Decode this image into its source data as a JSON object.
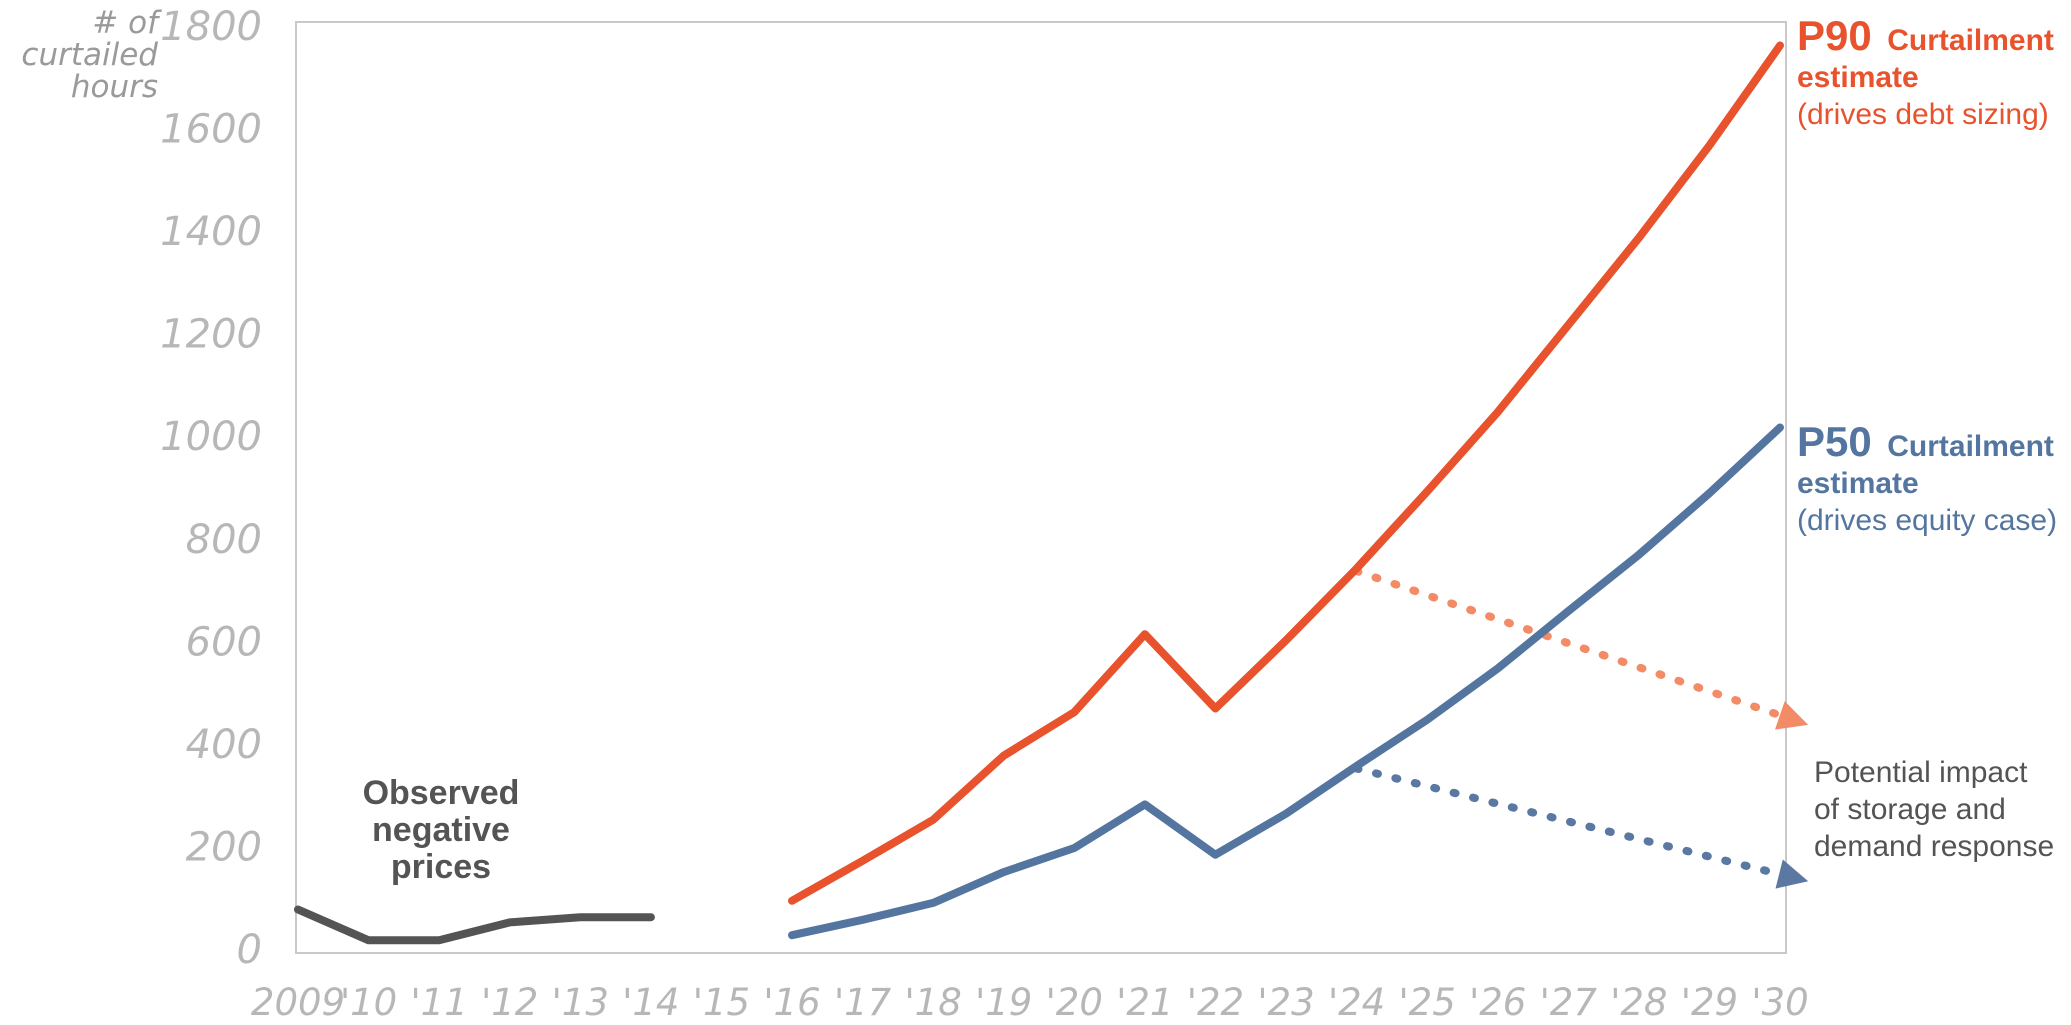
{
  "chart_data": {
    "type": "line",
    "ylabel": [
      "# of",
      "curtailed",
      "hours"
    ],
    "ylim": [
      0,
      1800
    ],
    "yticks": [
      0,
      200,
      400,
      600,
      800,
      1000,
      1200,
      1400,
      1600,
      1800
    ],
    "x_tick_labels": [
      "2009",
      "'10",
      "'11",
      "'12",
      "'13",
      "'14",
      "'15",
      "'16",
      "'17",
      "'18",
      "'19",
      "'20",
      "'21",
      "'22",
      "'23",
      "'24",
      "'25",
      "'26",
      "'27",
      "'28",
      "'29",
      "'30"
    ],
    "xlim": [
      2009,
      2030
    ],
    "grid": false,
    "series": [
      {
        "name": "Observed negative prices",
        "color": "#545454",
        "x": [
          2009,
          2010,
          2011,
          2012,
          2013,
          2014
        ],
        "values": [
          75,
          15,
          15,
          50,
          60,
          60
        ]
      },
      {
        "name": "P90 Curtailment estimate",
        "color": "#e8522c",
        "x": [
          2016,
          2017,
          2018,
          2019,
          2020,
          2021,
          2022,
          2023,
          2024,
          2025,
          2026,
          2027,
          2028,
          2029,
          2030
        ],
        "values": [
          92,
          170,
          250,
          375,
          460,
          612,
          467,
          600,
          740,
          890,
          1045,
          1215,
          1385,
          1565,
          1760
        ]
      },
      {
        "name": "P50 Curtailment estimate",
        "color": "#53759f",
        "x": [
          2016,
          2017,
          2018,
          2019,
          2020,
          2021,
          2022,
          2023,
          2024,
          2025,
          2026,
          2027,
          2028,
          2029,
          2030
        ],
        "values": [
          25,
          55,
          88,
          148,
          195,
          280,
          182,
          262,
          355,
          445,
          545,
          657,
          767,
          887,
          1015
        ]
      }
    ],
    "impact_arrows": [
      {
        "color": "#f38c66",
        "from": [
          2024,
          735
        ],
        "to": [
          2030.4,
          435
        ]
      },
      {
        "color": "#5a78a2",
        "from": [
          2024,
          350
        ],
        "to": [
          2030.4,
          130
        ]
      }
    ],
    "annotations": {
      "observed": [
        "Observed",
        "negative",
        "prices"
      ],
      "p90": {
        "strong": "P90",
        "title": "Curtailment",
        "line2": "estimate",
        "note": "(drives debt sizing)"
      },
      "p50": {
        "strong": "P50",
        "title": "Curtailment",
        "line2": "estimate",
        "note": "(drives equity case)"
      },
      "impact": [
        "Potential impact",
        "of storage and",
        "demand response"
      ]
    }
  }
}
